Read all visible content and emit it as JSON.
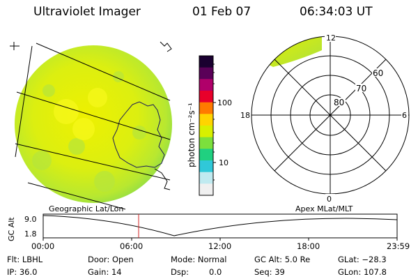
{
  "header": {
    "instrument": "Ultraviolet Imager",
    "date": "01 Feb 07",
    "time": "06:34:03 UT"
  },
  "colorbar": {
    "unit_label": "photon cm⁻²s⁻¹",
    "ticks": [
      "100",
      "10"
    ],
    "colors": [
      "#1a0030",
      "#5a0058",
      "#b0006a",
      "#e8002a",
      "#ff7a00",
      "#ffd400",
      "#d8f000",
      "#7ce03c",
      "#20d080",
      "#30c8d8",
      "#c0eaf0",
      "#f0f0f0"
    ]
  },
  "polar_plot": {
    "latitude_labels": [
      "80",
      "70",
      "60"
    ],
    "mlt_labels": {
      "top": "12",
      "bottom": "0",
      "left": "18",
      "right": "6"
    }
  },
  "timeline": {
    "left_caption": "Geographic Lat/Lon",
    "right_caption": "Apex MLat/MLT",
    "axis_title": "GC Alt",
    "ytick_top": "9.0",
    "ytick_bottom": "1.8",
    "xticks": [
      "00:00",
      "06:00",
      "12:00",
      "18:00",
      "23:59"
    ],
    "current_marker_color": "#d02020"
  },
  "status": {
    "filter": "Flt: LBHL",
    "ip": "IP: 36.0",
    "door": "Door: Open",
    "gain": "Gain: 14",
    "mode": "Mode: Normal",
    "dsp_label": "Dsp:",
    "dsp_value": "0.0",
    "gc_alt": "GC Alt: 5.0 Re",
    "seq": "Seq: 39",
    "glat": "GLat: −28.3",
    "glon": "GLon: 107.8"
  }
}
